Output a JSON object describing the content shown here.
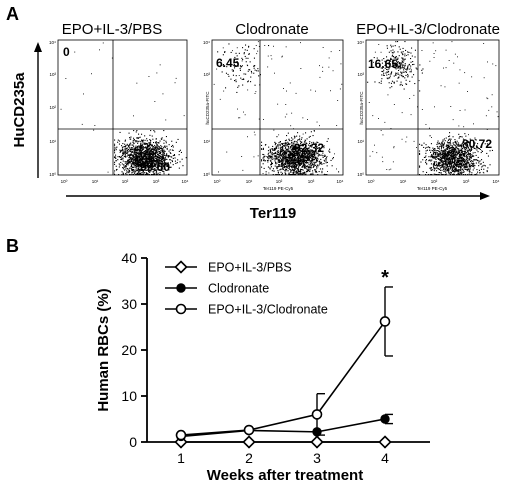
{
  "panels": {
    "a": "A",
    "b": "B"
  },
  "flow": {
    "plots": [
      {
        "title": "EPO+IL-3/PBS",
        "ul": "0",
        "lr": "99.60",
        "ul_frac": 0.0,
        "lr_frac": 0.996,
        "y_label": "",
        "x_label": ""
      },
      {
        "title": "Clodronate",
        "ul": "6.45",
        "lr": "92.32",
        "ul_frac": 0.0645,
        "lr_frac": 0.9232,
        "y_label": "huCD235a-FITC",
        "x_label": "Ter119 PE-Cy5"
      },
      {
        "title": "EPO+IL-3/Clodronate",
        "ul": "16.65",
        "lr": "80.72",
        "ul_frac": 0.1665,
        "lr_frac": 0.8072,
        "y_label": "huCD235a-FITC",
        "x_label": "Ter119 PE-Cy5"
      }
    ],
    "y_axis_title": "HuCD235a",
    "x_axis_title": "Ter119",
    "x_ticks": [
      "10⁰",
      "10¹",
      "10²",
      "10³",
      "10⁴"
    ],
    "y_ticks": [
      "10⁰",
      "10¹",
      "10²",
      "10³",
      "10⁴"
    ]
  },
  "colors": {
    "ink": "#000000",
    "background": "#ffffff"
  },
  "chart_data": {
    "type": "line",
    "x": [
      1,
      2,
      3,
      4
    ],
    "x_ticks": [
      "1",
      "2",
      "3",
      "4"
    ],
    "xlabel": "Weeks after treatment",
    "ylabel": "Human  RBCs (%)",
    "ylim": [
      0,
      40
    ],
    "y_ticks": [
      "0",
      "10",
      "20",
      "30",
      "40"
    ],
    "grid": false,
    "legend_position": "top",
    "series": [
      {
        "name": "EPO+IL-3/PBS",
        "marker": "diamond-open",
        "values": [
          0,
          0,
          0,
          0
        ],
        "errors": [
          0,
          0,
          0,
          0
        ]
      },
      {
        "name": "Clodronate",
        "marker": "circle-filled",
        "values": [
          1.2,
          2.5,
          2.2,
          5.0
        ],
        "errors": [
          0,
          0,
          0,
          1.0
        ]
      },
      {
        "name": "EPO+IL-3/Clodronate",
        "marker": "circle-open",
        "values": [
          1.5,
          2.6,
          6.0,
          26.2
        ],
        "errors": [
          0,
          0,
          4.5,
          7.5
        ]
      }
    ],
    "annotation": {
      "text": "*",
      "x": 4,
      "y": 36.5
    }
  }
}
